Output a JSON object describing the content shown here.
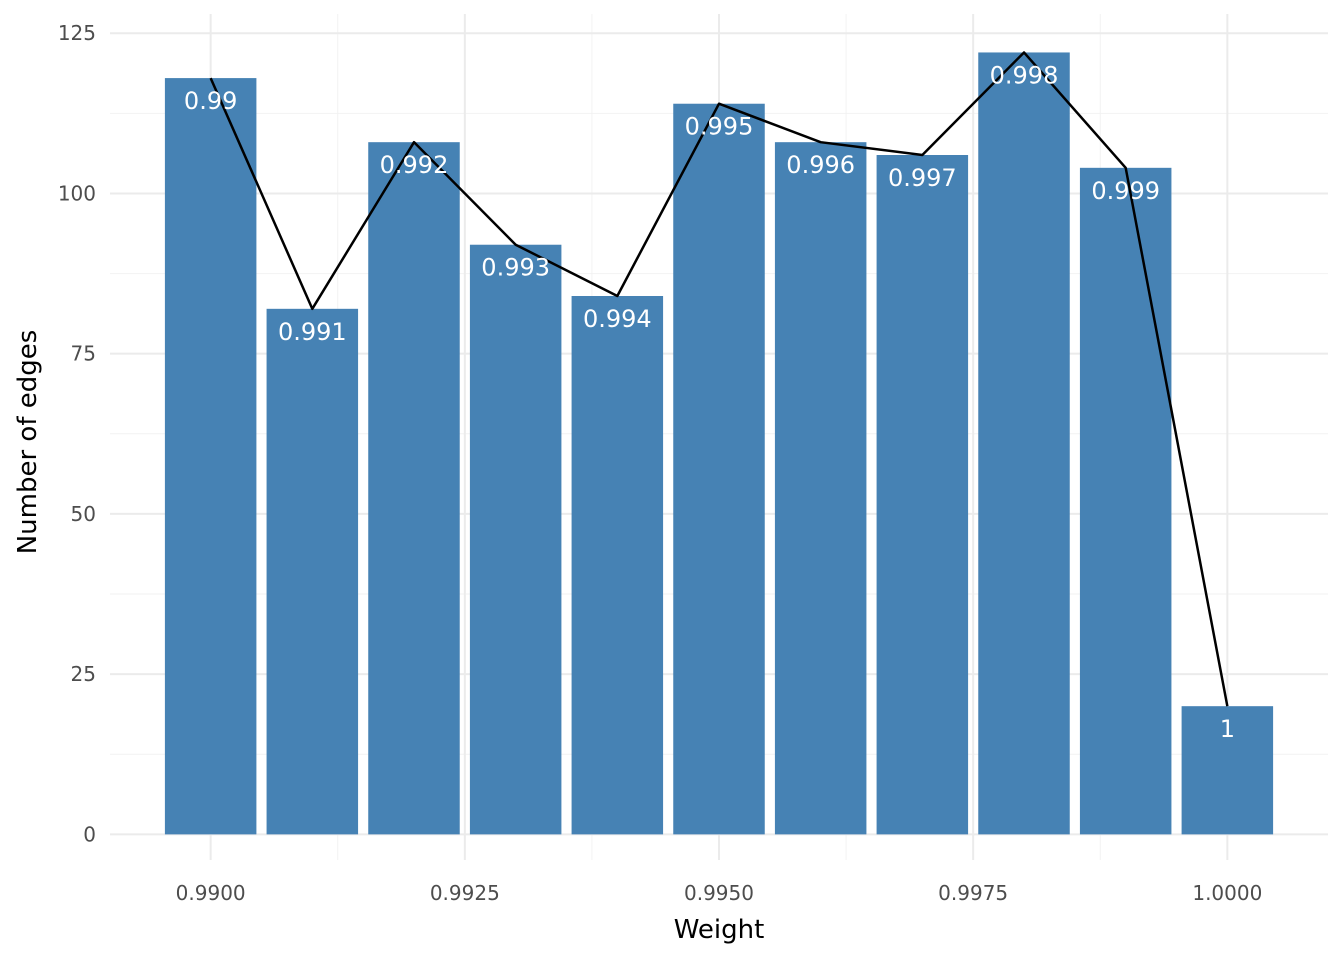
{
  "chart_data": {
    "type": "bar",
    "x": [
      0.99,
      0.991,
      0.992,
      0.993,
      0.994,
      0.995,
      0.996,
      0.997,
      0.998,
      0.999,
      1.0
    ],
    "values": [
      118,
      82,
      108,
      92,
      84,
      114,
      108,
      106,
      122,
      104,
      20
    ],
    "bar_labels": [
      "0.99",
      "0.991",
      "0.992",
      "0.993",
      "0.994",
      "0.995",
      "0.996",
      "0.997",
      "0.998",
      "0.999",
      "1"
    ],
    "overlay_line": {
      "type": "line",
      "x": [
        0.99,
        0.991,
        0.992,
        0.993,
        0.994,
        0.995,
        0.996,
        0.997,
        0.998,
        0.999,
        1.0
      ],
      "values": [
        118,
        82,
        108,
        92,
        84,
        114,
        108,
        106,
        122,
        104,
        20
      ]
    },
    "title": "",
    "xlabel": "Weight",
    "ylabel": "Number of edges",
    "xlim": [
      0.98901,
      1.00099
    ],
    "ylim": [
      -4,
      128
    ],
    "x_ticks": [
      0.99,
      0.9925,
      0.995,
      0.9975,
      1.0
    ],
    "x_tick_labels": [
      "0.9900",
      "0.9925",
      "0.9950",
      "0.9975",
      "1.0000"
    ],
    "y_ticks": [
      0,
      25,
      50,
      75,
      100,
      125
    ],
    "y_tick_labels": [
      "0",
      "25",
      "50",
      "75",
      "100",
      "125"
    ],
    "grid": true,
    "legend": "none",
    "colors": {
      "bar": "#4682b4",
      "line": "#000000",
      "bar_label": "#ffffff"
    }
  }
}
